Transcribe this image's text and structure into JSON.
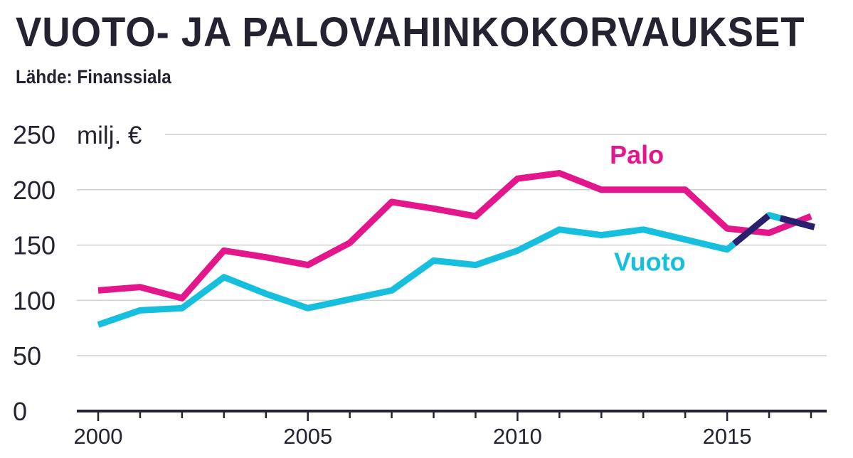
{
  "header": {
    "title": "VUOTO- JA PALOVAHINKOKORVAUKSET",
    "source": "Lähde: Finanssiala"
  },
  "chart_data": {
    "type": "line",
    "title": "VUOTO- JA PALOVAHINKOKORVAUKSET",
    "subtitle": "Lähde: Finanssiala",
    "unit_label": "milj. €",
    "x": [
      2000,
      2001,
      2002,
      2003,
      2004,
      2005,
      2006,
      2007,
      2008,
      2009,
      2010,
      2011,
      2012,
      2013,
      2014,
      2015,
      2016,
      2017
    ],
    "xticks": [
      "2000",
      "2005",
      "2010",
      "2015"
    ],
    "yticks": [
      "0",
      "50",
      "100",
      "150",
      "200",
      "250"
    ],
    "xlim": [
      2000,
      2017
    ],
    "ylim": [
      0,
      250
    ],
    "grid": true,
    "series": [
      {
        "name": "Palo",
        "color": "#e3168b",
        "values": [
          109,
          112,
          102,
          145,
          139,
          132,
          152,
          189,
          183,
          176,
          210,
          215,
          200,
          200,
          200,
          165,
          161,
          176
        ]
      },
      {
        "name": "Vuoto",
        "color": "#17bfdf",
        "values": [
          78,
          91,
          93,
          121,
          106,
          93,
          101,
          109,
          136,
          132,
          145,
          164,
          159,
          164,
          155,
          146,
          177,
          167
        ]
      }
    ]
  }
}
